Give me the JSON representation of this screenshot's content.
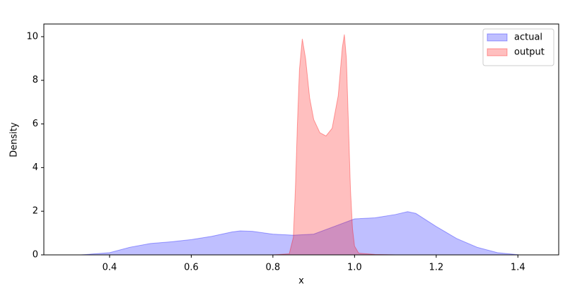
{
  "chart_data": {
    "type": "area",
    "x_label": "x",
    "y_label": "Density",
    "xlim": [
      0.239,
      1.5
    ],
    "ylim": [
      0,
      10.58
    ],
    "xticks": [
      0.4,
      0.6,
      0.8,
      {
        "value": 1,
        "label": "1.0"
      },
      1.2,
      1.4
    ],
    "yticks": [
      0,
      2,
      4,
      6,
      8,
      10
    ],
    "legend": "upper right",
    "series": [
      {
        "name": "actual",
        "color": "#0000ff",
        "x": [
          0.33,
          0.4,
          0.45,
          0.5,
          0.55,
          0.6,
          0.65,
          0.7,
          0.72,
          0.75,
          0.8,
          0.85,
          0.9,
          0.95,
          1.0,
          1.05,
          1.1,
          1.13,
          1.15,
          1.2,
          1.25,
          1.3,
          1.35,
          1.4
        ],
        "values": [
          0,
          0.1,
          0.35,
          0.52,
          0.6,
          0.7,
          0.85,
          1.05,
          1.1,
          1.08,
          0.95,
          0.9,
          0.95,
          1.3,
          1.65,
          1.7,
          1.85,
          1.98,
          1.9,
          1.3,
          0.75,
          0.35,
          0.1,
          0.01
        ]
      },
      {
        "name": "output",
        "color": "#ff0000",
        "x": [
          0.8,
          0.84,
          0.85,
          0.855,
          0.86,
          0.865,
          0.872,
          0.88,
          0.89,
          0.9,
          0.915,
          0.93,
          0.945,
          0.96,
          0.97,
          0.975,
          0.98,
          0.985,
          0.99,
          0.995,
          1.0,
          1.01,
          1.05,
          1.1
        ],
        "values": [
          0,
          0.05,
          0.8,
          3,
          6,
          8.5,
          9.9,
          9,
          7.2,
          6.2,
          5.6,
          5.45,
          5.8,
          7.3,
          9.5,
          10.1,
          9,
          6,
          3,
          1.2,
          0.4,
          0.08,
          0.02,
          0
        ]
      }
    ]
  }
}
